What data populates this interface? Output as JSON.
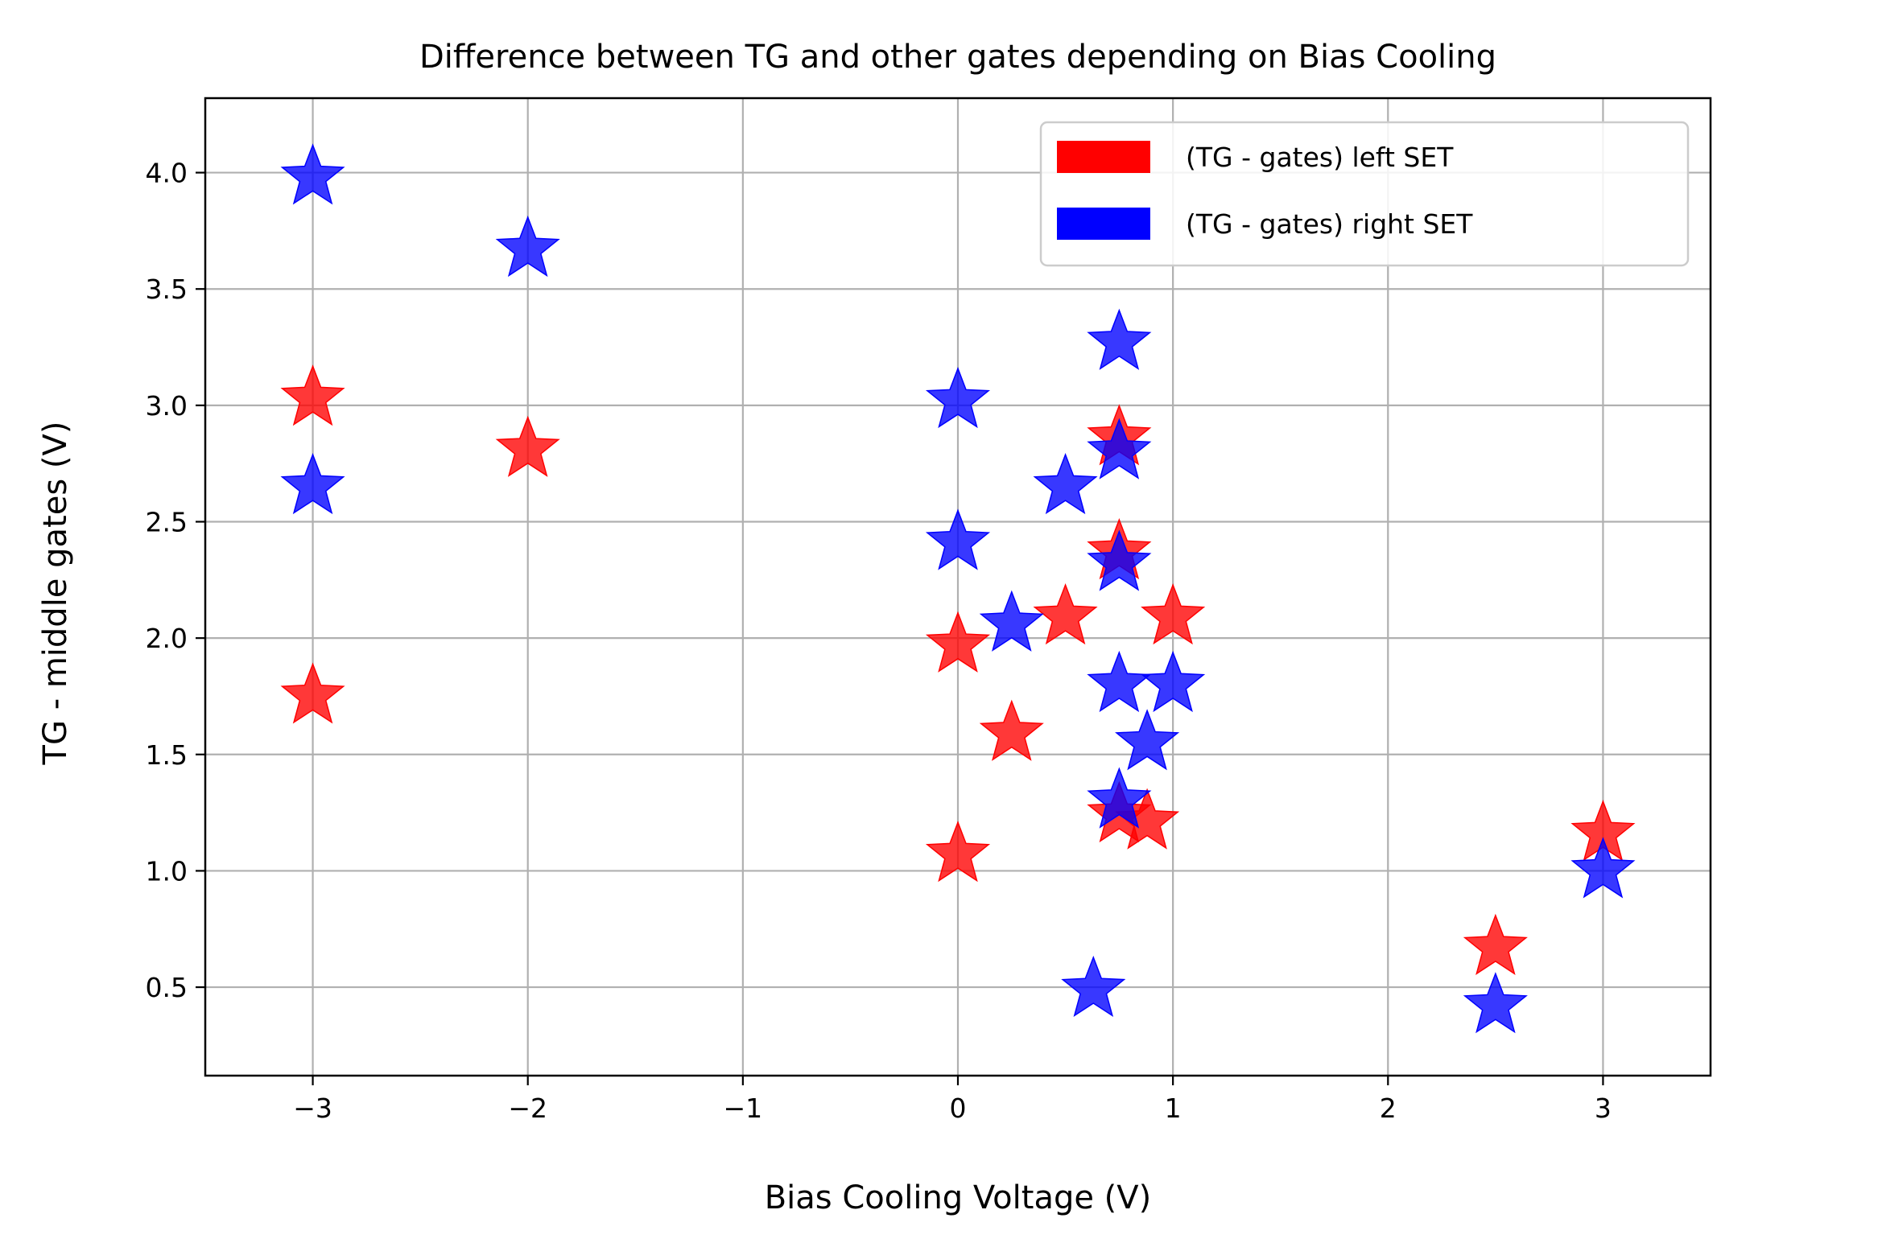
{
  "chart_data": {
    "type": "scatter",
    "title": "Difference between TG and other gates depending on Bias Cooling",
    "xlabel": "Bias Cooling Voltage (V)",
    "ylabel": "TG - middle gates (V)",
    "xlim": [
      -3.5,
      3.5
    ],
    "ylim": [
      0.12,
      4.32
    ],
    "x_ticks": [
      -3,
      -2,
      -1,
      0,
      1,
      2,
      3
    ],
    "x_tick_labels": [
      "−3",
      "−2",
      "−1",
      "0",
      "1",
      "2",
      "3"
    ],
    "y_ticks": [
      0.5,
      1.0,
      1.5,
      2.0,
      2.5,
      3.0,
      3.5,
      4.0
    ],
    "y_tick_labels": [
      "0.5",
      "1.0",
      "1.5",
      "2.0",
      "2.5",
      "3.0",
      "3.5",
      "4.0"
    ],
    "grid": true,
    "legend_position": "top-right",
    "marker": "star",
    "series": [
      {
        "name": "(TG - gates) left SET",
        "color": "#ff0000",
        "points": [
          {
            "x": -3,
            "y": 3.03
          },
          {
            "x": -3,
            "y": 1.75
          },
          {
            "x": -2,
            "y": 2.81
          },
          {
            "x": 0,
            "y": 1.97
          },
          {
            "x": 0,
            "y": 1.07
          },
          {
            "x": 0.25,
            "y": 1.59
          },
          {
            "x": 0.5,
            "y": 2.09
          },
          {
            "x": 0.75,
            "y": 2.86
          },
          {
            "x": 0.75,
            "y": 2.37
          },
          {
            "x": 0.75,
            "y": 1.24
          },
          {
            "x": 0.88,
            "y": 1.21
          },
          {
            "x": 1.0,
            "y": 2.09
          },
          {
            "x": 2.5,
            "y": 0.67
          },
          {
            "x": 3.0,
            "y": 1.16
          }
        ]
      },
      {
        "name": "(TG - gates) right SET",
        "color": "#0000ff",
        "points": [
          {
            "x": -3,
            "y": 3.98
          },
          {
            "x": -3,
            "y": 2.65
          },
          {
            "x": -2,
            "y": 3.67
          },
          {
            "x": 0,
            "y": 3.02
          },
          {
            "x": 0,
            "y": 2.41
          },
          {
            "x": 0.25,
            "y": 2.06
          },
          {
            "x": 0.5,
            "y": 2.65
          },
          {
            "x": 0.75,
            "y": 3.27
          },
          {
            "x": 0.75,
            "y": 2.8
          },
          {
            "x": 0.75,
            "y": 2.32
          },
          {
            "x": 0.75,
            "y": 1.8
          },
          {
            "x": 0.75,
            "y": 1.3
          },
          {
            "x": 0.63,
            "y": 0.49
          },
          {
            "x": 0.88,
            "y": 1.55
          },
          {
            "x": 1.0,
            "y": 1.8
          },
          {
            "x": 2.5,
            "y": 0.42
          },
          {
            "x": 3.0,
            "y": 1.0
          }
        ]
      }
    ]
  }
}
